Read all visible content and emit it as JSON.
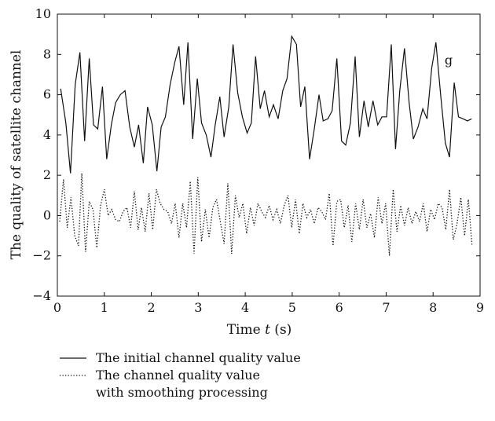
{
  "chart_data": {
    "type": "line",
    "xlabel_prefix": "Time ",
    "xlabel_var": "t",
    "xlabel_suffix": " (s)",
    "ylabel": "The quality of satellite channel",
    "xlim": [
      0,
      9
    ],
    "ylim": [
      -4,
      10
    ],
    "xticks": [
      "0",
      "1",
      "2",
      "3",
      "4",
      "5",
      "6",
      "7",
      "8",
      "9"
    ],
    "yticks": [
      "−4",
      "−2",
      "0",
      "2",
      "4",
      "6",
      "8",
      "10"
    ],
    "annotation": "g",
    "annotation_x": 8.33,
    "annotation_y": 7.5,
    "grid": false,
    "legend_position": "below",
    "series": [
      {
        "name_lines": [
          "The initial channel quality value"
        ],
        "style": "solid",
        "color": "#111111",
        "x": [
          0.07,
          0.18,
          0.28,
          0.38,
          0.48,
          0.58,
          0.68,
          0.77,
          0.86,
          0.96,
          1.05,
          1.15,
          1.24,
          1.34,
          1.44,
          1.54,
          1.64,
          1.73,
          1.83,
          1.92,
          2.02,
          2.12,
          2.21,
          2.3,
          2.4,
          2.5,
          2.59,
          2.69,
          2.78,
          2.88,
          2.98,
          3.07,
          3.17,
          3.27,
          3.36,
          3.46,
          3.55,
          3.65,
          3.74,
          3.84,
          3.94,
          4.04,
          4.13,
          4.22,
          4.32,
          4.41,
          4.51,
          4.6,
          4.7,
          4.8,
          4.89,
          4.99,
          5.09,
          5.18,
          5.27,
          5.37,
          5.47,
          5.57,
          5.66,
          5.76,
          5.85,
          5.95,
          6.05,
          6.14,
          6.24,
          6.34,
          6.43,
          6.53,
          6.62,
          6.72,
          6.82,
          6.91,
          7.01,
          7.11,
          7.2,
          7.29,
          7.39,
          7.49,
          7.58,
          7.68,
          7.78,
          7.87,
          7.97,
          8.06,
          8.16,
          8.26,
          8.35,
          8.45,
          8.54,
          8.64,
          8.73,
          8.82
        ],
        "y": [
          6.3,
          4.6,
          2.1,
          6.5,
          8.1,
          3.7,
          7.8,
          4.5,
          4.3,
          6.4,
          2.8,
          4.5,
          5.6,
          6.0,
          6.2,
          4.4,
          3.4,
          4.5,
          2.6,
          5.4,
          4.5,
          2.2,
          4.4,
          4.9,
          6.5,
          7.6,
          8.4,
          5.5,
          8.6,
          3.8,
          6.8,
          4.6,
          4.0,
          2.9,
          4.5,
          5.9,
          3.9,
          5.4,
          8.5,
          6.1,
          4.9,
          4.1,
          4.6,
          7.9,
          5.3,
          6.2,
          4.9,
          5.5,
          4.8,
          6.2,
          6.8,
          8.9,
          8.5,
          5.4,
          6.4,
          2.8,
          4.3,
          6.0,
          4.7,
          4.8,
          5.2,
          7.8,
          3.7,
          3.5,
          4.6,
          7.9,
          3.9,
          5.7,
          4.4,
          5.7,
          4.5,
          4.9,
          4.9,
          8.5,
          3.3,
          6.2,
          8.3,
          5.6,
          3.8,
          4.4,
          5.3,
          4.8,
          7.3,
          8.6,
          6.0,
          3.6,
          2.9,
          6.6,
          4.9,
          4.8,
          4.7,
          4.8
        ]
      },
      {
        "name_lines": [
          "The channel quality value",
          "with smoothing processing"
        ],
        "style": "dotted",
        "color": "#111111",
        "x": [
          0.05,
          0.13,
          0.21,
          0.29,
          0.37,
          0.45,
          0.52,
          0.6,
          0.68,
          0.76,
          0.84,
          0.92,
          1.0,
          1.08,
          1.16,
          1.24,
          1.32,
          1.4,
          1.48,
          1.56,
          1.64,
          1.72,
          1.79,
          1.87,
          1.95,
          2.03,
          2.11,
          2.19,
          2.27,
          2.35,
          2.43,
          2.51,
          2.59,
          2.67,
          2.75,
          2.83,
          2.91,
          2.99,
          3.07,
          3.15,
          3.23,
          3.31,
          3.39,
          3.47,
          3.55,
          3.63,
          3.71,
          3.79,
          3.87,
          3.95,
          4.03,
          4.11,
          4.19,
          4.27,
          4.35,
          4.43,
          4.51,
          4.59,
          4.67,
          4.75,
          4.83,
          4.91,
          4.99,
          5.07,
          5.15,
          5.23,
          5.31,
          5.39,
          5.47,
          5.55,
          5.63,
          5.71,
          5.79,
          5.87,
          5.95,
          6.03,
          6.11,
          6.19,
          6.27,
          6.35,
          6.43,
          6.51,
          6.59,
          6.67,
          6.75,
          6.83,
          6.91,
          6.99,
          7.07,
          7.15,
          7.23,
          7.31,
          7.39,
          7.47,
          7.55,
          7.63,
          7.71,
          7.79,
          7.87,
          7.95,
          8.03,
          8.11,
          8.19,
          8.27,
          8.35,
          8.43,
          8.51,
          8.59,
          8.67,
          8.75,
          8.83
        ],
        "y": [
          -0.3,
          1.8,
          -0.6,
          0.9,
          -1.0,
          -1.5,
          2.1,
          -1.8,
          0.7,
          0.3,
          -1.6,
          0.5,
          1.3,
          0.0,
          0.3,
          -0.2,
          -0.3,
          0.2,
          0.4,
          -0.6,
          1.2,
          -0.7,
          0.4,
          -0.8,
          1.1,
          -0.7,
          1.3,
          0.6,
          0.3,
          0.2,
          -0.4,
          0.6,
          -1.1,
          0.6,
          -0.6,
          1.7,
          -1.9,
          1.9,
          -1.3,
          0.3,
          -1.1,
          0.4,
          0.8,
          -0.3,
          -1.4,
          1.6,
          -1.9,
          1.0,
          -0.1,
          0.6,
          -0.9,
          0.4,
          -0.5,
          0.6,
          0.2,
          -0.1,
          0.5,
          -0.2,
          0.3,
          -0.4,
          0.5,
          1.0,
          -0.6,
          0.8,
          -0.9,
          0.6,
          -0.1,
          0.3,
          -0.4,
          0.4,
          0.2,
          -0.2,
          1.1,
          -1.5,
          0.7,
          0.8,
          -0.6,
          0.5,
          -1.3,
          0.6,
          -0.7,
          0.8,
          -0.6,
          0.1,
          -1.1,
          0.9,
          -0.4,
          0.6,
          -2.0,
          1.3,
          -0.8,
          0.5,
          -0.5,
          0.4,
          -0.4,
          0.2,
          -0.3,
          0.6,
          -0.8,
          0.3,
          -0.2,
          0.6,
          0.4,
          -0.7,
          1.3,
          -1.2,
          -0.4,
          0.9,
          -1.0,
          0.8,
          -1.5
        ]
      }
    ]
  }
}
